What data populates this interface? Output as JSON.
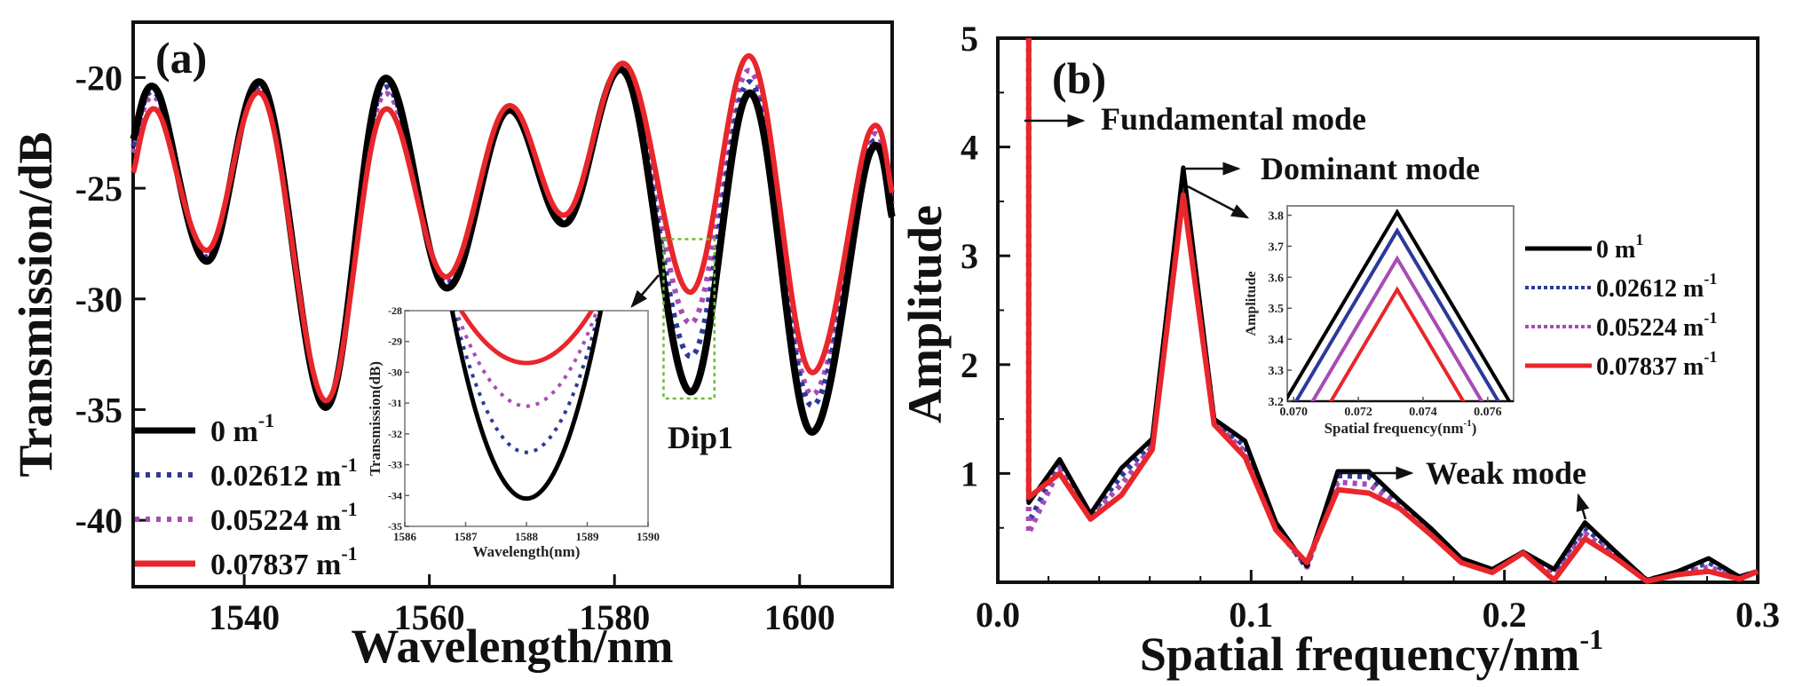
{
  "chart_data": [
    {
      "type": "line",
      "panel_label": "(a)",
      "title": "",
      "xlabel": "Wavelength/nm",
      "ylabel": "Transmission/dB",
      "xlim": [
        1528,
        1610
      ],
      "ylim": [
        -43,
        -17.5
      ],
      "xticks": [
        1540,
        1560,
        1580,
        1600
      ],
      "yticks": [
        -20,
        -25,
        -30,
        -35,
        -40
      ],
      "grid": false,
      "legend_position": "bottom-left",
      "annotations": [
        {
          "text": "Dip1",
          "target_x": 1588.2
        }
      ],
      "highlight_box": {
        "x_range": [
          1585.3,
          1590.8
        ],
        "y_range": [
          -27.3,
          -34.5
        ],
        "color": "#6dbb3a"
      },
      "series": [
        {
          "name": "0 m-1",
          "label": "0 m",
          "sup": "-1",
          "color": "#000000",
          "style": "solid",
          "x": [
            1528,
            1530.6,
            1536,
            1542,
            1548.8,
            1555,
            1561.8,
            1568.4,
            1574.7,
            1581.2,
            1588.2,
            1594.7,
            1601.2,
            1607.5,
            1610
          ],
          "y": [
            -22.8,
            -20.6,
            -28.3,
            -20.3,
            -34.9,
            -20.1,
            -29.5,
            -21.5,
            -26.6,
            -19.8,
            -34.2,
            -20.7,
            -36.0,
            -23.5,
            -26.3
          ]
        },
        {
          "name": "0.02612 m-1",
          "label": "0.02612 m",
          "sup": "-1",
          "color": "#2b3a9a",
          "style": "dotted",
          "x": [
            1528,
            1530.6,
            1536,
            1542,
            1548.8,
            1555,
            1561.8,
            1568.4,
            1574.7,
            1581.2,
            1588.2,
            1594.7,
            1601.2,
            1607.5,
            1610
          ],
          "y": [
            -23.1,
            -20.8,
            -28.1,
            -20.5,
            -34.8,
            -20.5,
            -29.3,
            -21.5,
            -26.5,
            -19.7,
            -32.6,
            -20.2,
            -34.8,
            -23.2,
            -26.0
          ]
        },
        {
          "name": "0.05224 m-1",
          "label": "0.05224 m",
          "sup": "-1",
          "color": "#a84bb4",
          "style": "dotted",
          "x": [
            1528,
            1530.6,
            1536,
            1542,
            1548.8,
            1555,
            1561.8,
            1568.4,
            1574.7,
            1581.2,
            1588.2,
            1594.7,
            1601.2,
            1607.5,
            1610
          ],
          "y": [
            -23.4,
            -21.0,
            -28.0,
            -20.7,
            -34.8,
            -20.8,
            -29.2,
            -21.4,
            -26.4,
            -19.6,
            -31.1,
            -19.7,
            -34.3,
            -22.9,
            -25.7
          ]
        },
        {
          "name": "0.07837 m-1",
          "label": "0.07837 m",
          "sup": "-1",
          "color": "#e8262b",
          "style": "solid",
          "x": [
            1528,
            1530.6,
            1536,
            1542,
            1548.8,
            1555,
            1561.8,
            1568.4,
            1574.7,
            1581.2,
            1588.2,
            1594.7,
            1601.2,
            1607.5,
            1610
          ],
          "y": [
            -24.3,
            -21.5,
            -27.8,
            -20.8,
            -34.6,
            -21.5,
            -29.0,
            -21.3,
            -26.2,
            -19.4,
            -29.7,
            -19.05,
            -33.3,
            -22.5,
            -25.2
          ]
        }
      ],
      "inset": {
        "xlabel": "Wavelength(nm)",
        "ylabel": "Transmission(dB)",
        "xlim": [
          1586,
          1590
        ],
        "ylim": [
          -35,
          -28
        ],
        "xticks": [
          1586,
          1587,
          1588,
          1589,
          1590
        ],
        "yticks": [
          -28,
          -29,
          -30,
          -31,
          -32,
          -33,
          -34,
          -35
        ],
        "series_minima": [
          {
            "name": "0 m-1",
            "x_min": 1588.0,
            "y_min": -34.1,
            "color": "#000000",
            "style": "solid",
            "half_width": 1.3
          },
          {
            "name": "0.02612 m-1",
            "x_min": 1588.0,
            "y_min": -32.6,
            "color": "#2b3a9a",
            "style": "dotted",
            "half_width": 1.3
          },
          {
            "name": "0.05224 m-1",
            "x_min": 1588.0,
            "y_min": -31.1,
            "color": "#a84bb4",
            "style": "dotted",
            "half_width": 1.3
          },
          {
            "name": "0.07837 m-1",
            "x_min": 1588.0,
            "y_min": -29.7,
            "color": "#e8262b",
            "style": "solid",
            "half_width": 1.3
          }
        ]
      }
    },
    {
      "type": "line",
      "panel_label": "(b)",
      "title": "",
      "xlabel": "Spatial frequency/nm",
      "xlabel_sup": "-1",
      "ylabel": "Amplitude",
      "xlim": [
        0,
        0.3
      ],
      "ylim": [
        0,
        5
      ],
      "xticks": [
        0.0,
        0.1,
        0.2,
        0.3
      ],
      "xtick_labels": [
        "0.0",
        "0.1",
        "0.2",
        "0.3"
      ],
      "yticks": [
        1,
        2,
        3,
        4,
        5
      ],
      "grid": false,
      "legend_position": "right",
      "annotations": [
        {
          "text": "Fundamental mode",
          "target_x": 0.0122,
          "target_y": 4.2
        },
        {
          "text": "Dominant mode",
          "target_x": 0.0732,
          "target_y": 3.8
        },
        {
          "text": "Weak mode",
          "target_x": 0.137,
          "target_y": 1.0
        }
      ],
      "series": [
        {
          "name": "0 m-1",
          "label": "0 m",
          "sup": "1",
          "color": "#000000",
          "style": "solid",
          "x": [
            0.0122,
            0.0122,
            0.0244,
            0.0366,
            0.0488,
            0.061,
            0.0732,
            0.0854,
            0.0976,
            0.1098,
            0.122,
            0.1342,
            0.1464,
            0.1586,
            0.1708,
            0.183,
            0.1952,
            0.2074,
            0.2196,
            0.2318,
            0.244,
            0.2562,
            0.2684,
            0.2806,
            0.2928,
            0.3
          ],
          "y": [
            5.0,
            0.73,
            1.13,
            0.63,
            1.05,
            1.32,
            3.81,
            1.5,
            1.3,
            0.55,
            0.15,
            1.02,
            1.02,
            0.75,
            0.5,
            0.22,
            0.12,
            0.28,
            0.12,
            0.55,
            0.28,
            0.02,
            0.1,
            0.22,
            0.05,
            0.1
          ]
        },
        {
          "name": "0.02612 m-1",
          "label": "0.02612 m",
          "sup": "-1",
          "color": "#2b3a9a",
          "style": "dotted",
          "x": [
            0.0122,
            0.0122,
            0.0244,
            0.0366,
            0.0488,
            0.061,
            0.0732,
            0.0854,
            0.0976,
            0.1098,
            0.122,
            0.1342,
            0.1464,
            0.1586,
            0.1708,
            0.183,
            0.1952,
            0.2074,
            0.2196,
            0.2318,
            0.244,
            0.2562,
            0.2684,
            0.2806,
            0.2928,
            0.3
          ],
          "y": [
            5.0,
            0.55,
            1.1,
            0.61,
            0.98,
            1.28,
            3.75,
            1.48,
            1.25,
            0.52,
            0.13,
            0.98,
            0.97,
            0.73,
            0.48,
            0.2,
            0.11,
            0.27,
            0.1,
            0.5,
            0.26,
            0.02,
            0.09,
            0.18,
            0.05,
            0.1
          ]
        },
        {
          "name": "0.05224 m-1",
          "label": "0.05224 m",
          "sup": "-1",
          "color": "#a84bb4",
          "style": "dotted",
          "x": [
            0.0122,
            0.0122,
            0.0244,
            0.0366,
            0.0488,
            0.061,
            0.0732,
            0.0854,
            0.0976,
            0.1098,
            0.122,
            0.1342,
            0.1464,
            0.1586,
            0.1708,
            0.183,
            0.1952,
            0.2074,
            0.2196,
            0.2318,
            0.244,
            0.2562,
            0.2684,
            0.2806,
            0.2928,
            0.3
          ],
          "y": [
            5.0,
            0.45,
            1.05,
            0.6,
            0.9,
            1.25,
            3.66,
            1.47,
            1.2,
            0.5,
            0.14,
            0.92,
            0.9,
            0.7,
            0.46,
            0.19,
            0.1,
            0.27,
            0.08,
            0.45,
            0.24,
            0.01,
            0.08,
            0.14,
            0.05,
            0.1
          ]
        },
        {
          "name": "0.07837 m-1",
          "label": "0.07837 m",
          "sup": "-1",
          "color": "#e8262b",
          "style": "solid",
          "x": [
            0.0122,
            0.0122,
            0.0244,
            0.0366,
            0.0488,
            0.061,
            0.0732,
            0.0854,
            0.0976,
            0.1098,
            0.122,
            0.1342,
            0.1464,
            0.1586,
            0.1708,
            0.183,
            0.1952,
            0.2074,
            0.2196,
            0.2318,
            0.244,
            0.2562,
            0.2684,
            0.2806,
            0.2928,
            0.3
          ],
          "y": [
            5.0,
            0.78,
            1.0,
            0.58,
            0.8,
            1.22,
            3.56,
            1.45,
            1.15,
            0.48,
            0.18,
            0.85,
            0.82,
            0.68,
            0.44,
            0.18,
            0.09,
            0.27,
            0.02,
            0.4,
            0.22,
            0.01,
            0.07,
            0.1,
            0.03,
            0.1
          ]
        }
      ],
      "inset": {
        "xlabel": "Spatial frequency(nm",
        "xlabel_sup": "-1",
        "xlabel_close": ")",
        "ylabel": "Amplitude",
        "xlim": [
          0.0698,
          0.0768
        ],
        "ylim": [
          3.2,
          3.83
        ],
        "xticks": [
          0.07,
          0.072,
          0.074,
          0.076
        ],
        "xtick_labels": [
          "0.070",
          "0.072",
          "0.074",
          "0.076"
        ],
        "yticks": [
          3.2,
          3.3,
          3.4,
          3.5,
          3.6,
          3.7,
          3.8
        ],
        "ytick_labels": [
          "3.2",
          "3.3",
          "3.4",
          "3.5",
          "3.6",
          "3.7",
          "3.8"
        ],
        "series_peaks": [
          {
            "name": "0 m-1",
            "x_peak": 0.0732,
            "y_peak": 3.81,
            "color": "#000000"
          },
          {
            "name": "0.02612 m-1",
            "x_peak": 0.0732,
            "y_peak": 3.75,
            "color": "#2b3a9a"
          },
          {
            "name": "0.05224 m-1",
            "x_peak": 0.0732,
            "y_peak": 3.66,
            "color": "#a84bb4"
          },
          {
            "name": "0.07837 m-1",
            "x_peak": 0.0732,
            "y_peak": 3.56,
            "color": "#e8262b"
          }
        ],
        "slope_per_unit": 176
      }
    }
  ]
}
